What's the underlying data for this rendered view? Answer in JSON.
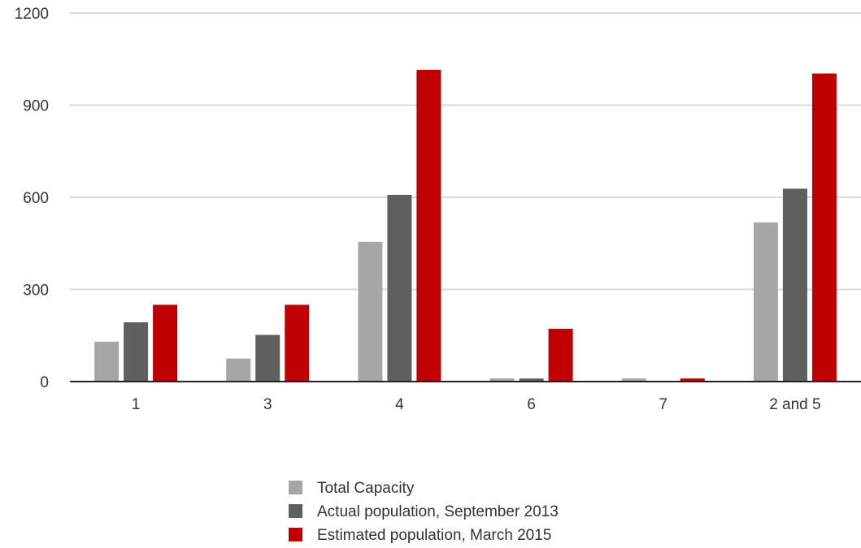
{
  "chart_data": {
    "type": "bar",
    "categories": [
      "1",
      "3",
      "4",
      "6",
      "7",
      "2 and 5"
    ],
    "series": [
      {
        "name": "Total Capacity",
        "color": "#a6a6a6",
        "values": [
          130,
          75,
          455,
          10,
          10,
          518
        ]
      },
      {
        "name": "Actual population, September 2013",
        "color": "#5f5f5f",
        "values": [
          193,
          152,
          608,
          10,
          0,
          628
        ]
      },
      {
        "name": "Estimated population, March 2015",
        "color": "#c00000",
        "values": [
          250,
          250,
          1015,
          172,
          10,
          1003
        ]
      }
    ],
    "ylim": [
      0,
      1200
    ],
    "yticks": [
      0,
      300,
      600,
      900,
      1200
    ],
    "grid": true,
    "legend_position": "bottom"
  }
}
